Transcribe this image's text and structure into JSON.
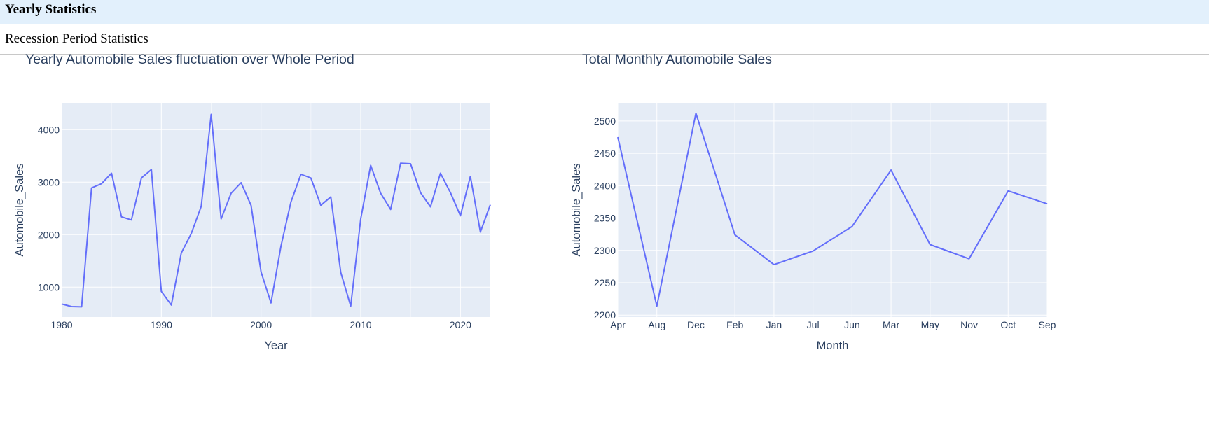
{
  "dropdown": {
    "selected": "Yearly Statistics",
    "options": [
      "Recession Period Statistics"
    ]
  },
  "colors": {
    "line": "#636efa",
    "plot_bg": "#e5ecf6",
    "grid": "#ffffff",
    "text": "#2a3f5f",
    "dropdown_bg": "#e2f0fc"
  },
  "chart_data": [
    {
      "type": "line",
      "title": "Yearly Automobile Sales fluctuation over Whole Period",
      "xlabel": "Year",
      "ylabel": "Automobile_Sales",
      "xlim": [
        1980,
        2023
      ],
      "ylim": [
        430,
        4510
      ],
      "x_ticks": [
        1980,
        1990,
        2000,
        2010,
        2020
      ],
      "y_ticks": [
        1000,
        2000,
        3000,
        4000
      ],
      "grid": true,
      "x": [
        1980,
        1981,
        1982,
        1983,
        1984,
        1985,
        1986,
        1987,
        1988,
        1989,
        1990,
        1991,
        1992,
        1993,
        1994,
        1995,
        1996,
        1997,
        1998,
        1999,
        2000,
        2001,
        2002,
        2003,
        2004,
        2005,
        2006,
        2007,
        2008,
        2009,
        2010,
        2011,
        2012,
        2013,
        2014,
        2015,
        2016,
        2017,
        2018,
        2019,
        2020,
        2021,
        2022,
        2023
      ],
      "values": [
        680,
        630,
        625,
        2890,
        2970,
        3170,
        2340,
        2280,
        3080,
        3240,
        920,
        660,
        1650,
        2020,
        2540,
        4290,
        2300,
        2790,
        2990,
        2560,
        1290,
        700,
        1780,
        2620,
        3150,
        3080,
        2560,
        2720,
        1280,
        640,
        2300,
        3320,
        2790,
        2480,
        3360,
        3350,
        2800,
        2530,
        3170,
        2800,
        2360,
        3110,
        2050,
        2570
      ]
    },
    {
      "type": "line",
      "title": "Total Monthly Automobile Sales",
      "xlabel": "Month",
      "ylabel": "Automobile_Sales",
      "ylim": [
        2197,
        2528
      ],
      "y_ticks": [
        2200,
        2250,
        2300,
        2350,
        2400,
        2450,
        2500
      ],
      "grid": true,
      "categories": [
        "Apr",
        "Aug",
        "Dec",
        "Feb",
        "Jan",
        "Jul",
        "Jun",
        "Mar",
        "May",
        "Nov",
        "Oct",
        "Sep"
      ],
      "values": [
        2475,
        2214,
        2512,
        2324,
        2278,
        2299,
        2337,
        2424,
        2309,
        2287,
        2392,
        2372
      ]
    }
  ]
}
